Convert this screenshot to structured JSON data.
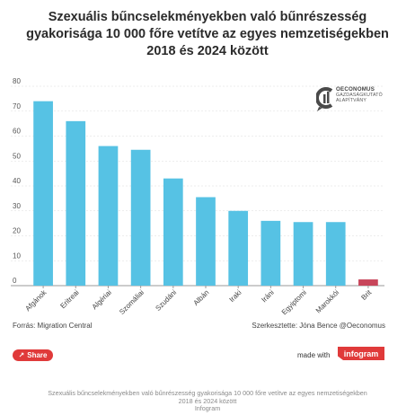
{
  "title_lines": [
    "Szexuális bűncselekményekben való bűnrészesség",
    "gyakorisága 10 000 főre vetítve az egyes nemzetiségekben",
    "2018 és 2024 között"
  ],
  "logo": {
    "icon": "oeconomus-logo-icon",
    "line1": "OECONOMUS",
    "line2": "GAZDASÁGKUTATÓ",
    "line3": "ALAPÍTVÁNY"
  },
  "source": "Forrás: Migration Central",
  "author": "Szerkesztette: Jóna Bence @Oeconomus",
  "share_label": "Share",
  "made_with": "made with",
  "infogram_logo": "infogram",
  "caption_lines": [
    "Szexuális bűncselekményekben való bűnrészesség gyakorisága 10 000 főre vetítve az egyes nemzetiségekben",
    "2018 és 2024 között",
    "Infogram"
  ],
  "colors": {
    "bar": "#56c2e4",
    "highlight": "#c8455a",
    "grid": "#dcdcdc",
    "brand_red": "#e03a3a"
  },
  "chart_data": {
    "type": "bar",
    "categories": [
      "Afgánok",
      "Eritreai",
      "Algériai",
      "Szomáliai",
      "Szudáni",
      "Albán",
      "Iraki",
      "Iráni",
      "Egyiptomi",
      "Marokkói",
      "Brit"
    ],
    "values": [
      74,
      66,
      56,
      54.5,
      43,
      35.5,
      30,
      26,
      25.5,
      25.5,
      2.5
    ],
    "highlight_index": 10,
    "ylim": [
      0,
      80
    ],
    "yticks": [
      0,
      10,
      20,
      30,
      40,
      50,
      60,
      70,
      80
    ],
    "grid": true,
    "xlabel": "",
    "ylabel": ""
  }
}
